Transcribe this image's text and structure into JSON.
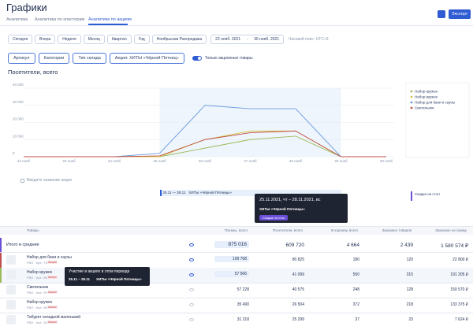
{
  "header": {
    "title": "Графики",
    "tabs": [
      "Аналитика",
      "Аналитика по кластерам",
      "Аналитика по акциям"
    ],
    "export": "Экспорт"
  },
  "filters": {
    "periods": [
      "Сегодня",
      "Вчера",
      "Неделя",
      "Месяц",
      "Квартал",
      "Год",
      "Ноябрьская Распродажа"
    ],
    "date_from": "22 нояб. 2021",
    "date_to": "30 нояб. 2021",
    "timezone": "Часовой пояс: UTC+3"
  },
  "selectors": {
    "items": [
      "Артикул",
      "Категории",
      "Тип склада",
      "Акция: ХИТЫ «Чёрной Пятниц»"
    ],
    "toggle": "Только акционные товары"
  },
  "chart_data": {
    "type": "line",
    "title": "Посетители, всего",
    "categories": [
      "22 нояб",
      "23 нояб",
      "24 нояб",
      "25 нояб",
      "26 нояб",
      "27 нояб",
      "28 нояб",
      "29 нояб",
      "30 нояб"
    ],
    "series": [
      {
        "name": "Набор кружек",
        "color": "#9bbb59",
        "values": [
          0,
          0,
          0,
          0,
          5000,
          10000,
          12000,
          0,
          0
        ]
      },
      {
        "name": "Набор кружек",
        "color": "#d8c648",
        "values": [
          0,
          0,
          0,
          0,
          10000,
          15000,
          15000,
          0,
          0
        ]
      },
      {
        "name": "Набор для бани и сауны",
        "color": "#6b9ae0",
        "values": [
          0,
          0,
          0,
          2000,
          30000,
          28000,
          28000,
          0,
          0
        ]
      },
      {
        "name": "Светильник",
        "color": "#c0504d",
        "values": [
          0,
          0,
          0,
          500,
          10000,
          14000,
          15000,
          0,
          0
        ]
      }
    ],
    "ylim": [
      0,
      40000
    ],
    "yticks": [
      0,
      {
        "value": 10000,
        "label": "10 000"
      },
      {
        "value": 20000,
        "label": "20 000"
      },
      {
        "value": 30000,
        "label": "30 000"
      },
      {
        "value": 40000,
        "label": "40 000"
      }
    ],
    "grid": true
  },
  "promo": {
    "checkbox": "Введите название акции",
    "dates": "25.11 — 28.11",
    "name": "ХИТЫ «Чёрной Пятницы»",
    "legend": "Скидка на стол",
    "tooltip": {
      "dates": "25.11.2021, чт – 28.11.2021, вс",
      "name": "ХИТЫ «Чёрной Пятницы»",
      "button": "Скидка на стол"
    }
  },
  "table": {
    "headers": [
      "Товары",
      "Показы, всего",
      "Посетители, всего",
      "В корзину, всего",
      "Заказано товаров",
      "Заказано на сумму"
    ],
    "total": {
      "name": "Итого и средние",
      "cells": [
        "875 016",
        "609 720",
        "4 664",
        "2 439",
        "1 580 574 ₽"
      ]
    },
    "rows": [
      {
        "name": "Набор для бани и сауны",
        "sku": "FBO · Арт.: 7937357",
        "badge": "Акция",
        "cells": [
          "109 768",
          "80 825",
          "180",
          "120",
          "22 800 ₽"
        ]
      },
      {
        "name": "Набор кружек",
        "sku": "FBO · Арт.: 9K70253",
        "badge": "Акция",
        "cells": [
          "57 566",
          "41 099",
          "550",
          "315",
          "191 205 ₽"
        ]
      },
      {
        "name": "Светильник",
        "sku": "FBO · Арт.: RH0147",
        "badge": "Акция",
        "cells": [
          "57 228",
          "40 575",
          "248",
          "128",
          "150 570 ₽"
        ]
      },
      {
        "name": "Набор кружек",
        "sku": "FBO · Арт.: 9K70252",
        "badge": "Акция",
        "cells": [
          "35 490",
          "26 504",
          "372",
          "218",
          "133 375 ₽"
        ]
      },
      {
        "name": "Табурет складной маленький",
        "sku": "FBO · Арт.: 2K70150",
        "badge": "Акция",
        "cells": [
          "31 218",
          "25 299",
          "37",
          "23",
          "7 624 ₽"
        ]
      }
    ]
  },
  "row_tooltip": {
    "title": "Участие в акциях в этом периода",
    "dates": "25.11 – 28.11",
    "name": "ХИТЫ «Чёрной Пятницы»"
  }
}
